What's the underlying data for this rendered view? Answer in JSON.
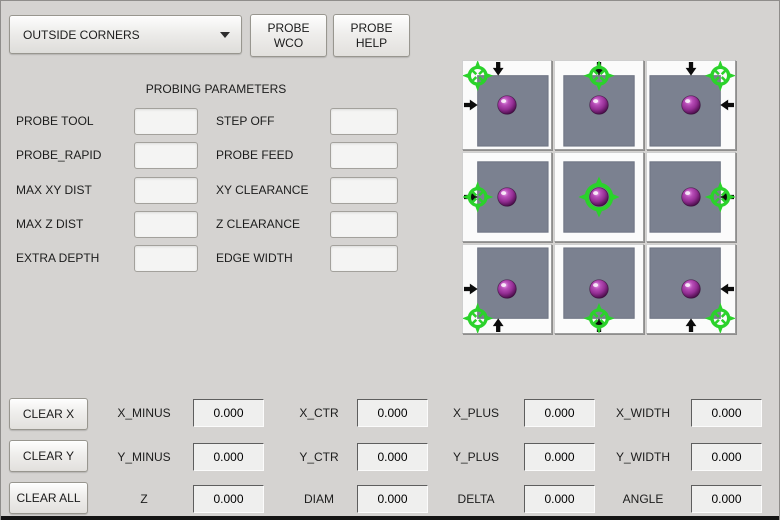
{
  "window": {
    "background": "#d5d3d1",
    "bottom_bar_color": "#141414"
  },
  "toolbar": {
    "mode_dropdown": {
      "value": "OUTSIDE CORNERS"
    },
    "probe_wco_button": {
      "lines": [
        "PROBE",
        "WCO"
      ]
    },
    "probe_help_button": {
      "lines": [
        "PROBE",
        "HELP"
      ]
    }
  },
  "parameters": {
    "title": "PROBING PARAMETERS",
    "rows": [
      {
        "left_label": "PROBE TOOL",
        "left_value": "",
        "right_label": "STEP OFF",
        "right_value": ""
      },
      {
        "left_label": "PROBE_RAPID",
        "left_value": "",
        "right_label": "PROBE FEED",
        "right_value": ""
      },
      {
        "left_label": "MAX XY DIST",
        "left_value": "",
        "right_label": "XY CLEARANCE",
        "right_value": ""
      },
      {
        "left_label": "MAX Z DIST",
        "left_value": "",
        "right_label": "Z CLEARANCE",
        "right_value": ""
      },
      {
        "left_label": "EXTRA DEPTH",
        "left_value": "",
        "right_label": "EDGE WIDTH",
        "right_value": ""
      }
    ]
  },
  "probe_grid": {
    "colors": {
      "square": "#7b8190",
      "square_edge": "#6d7382",
      "crosshair": "#2bd22b",
      "arrow": "#0c0c0c",
      "sphere_main": "#932e93",
      "tile_face": "#fbfbfb"
    },
    "tiles": [
      {
        "name": "top-left-corner",
        "target": "top-left",
        "arrows": [
          "down",
          "right"
        ]
      },
      {
        "name": "top-edge",
        "target": "top",
        "arrows": [
          "down"
        ]
      },
      {
        "name": "top-right-corner",
        "target": "top-right",
        "arrows": [
          "down",
          "left"
        ]
      },
      {
        "name": "left-edge",
        "target": "left",
        "arrows": [
          "right"
        ]
      },
      {
        "name": "center",
        "target": "center",
        "arrows": []
      },
      {
        "name": "right-edge",
        "target": "right",
        "arrows": [
          "left"
        ]
      },
      {
        "name": "bottom-left-corner",
        "target": "bottom-left",
        "arrows": [
          "up",
          "right"
        ]
      },
      {
        "name": "bottom-edge",
        "target": "bottom",
        "arrows": [
          "up"
        ]
      },
      {
        "name": "bottom-right-corner",
        "target": "bottom-right",
        "arrows": [
          "up",
          "left"
        ]
      }
    ]
  },
  "results": {
    "clear_buttons": [
      {
        "label": "CLEAR X"
      },
      {
        "label": "CLEAR Y"
      },
      {
        "label": "CLEAR ALL"
      }
    ],
    "rows": [
      {
        "cells": [
          {
            "label": "X_MINUS",
            "value": "0.000"
          },
          {
            "label": "X_CTR",
            "value": "0.000"
          },
          {
            "label": "X_PLUS",
            "value": "0.000"
          },
          {
            "label": "X_WIDTH",
            "value": "0.000"
          }
        ]
      },
      {
        "cells": [
          {
            "label": "Y_MINUS",
            "value": "0.000"
          },
          {
            "label": "Y_CTR",
            "value": "0.000"
          },
          {
            "label": "Y_PLUS",
            "value": "0.000"
          },
          {
            "label": "Y_WIDTH",
            "value": "0.000"
          }
        ]
      },
      {
        "cells": [
          {
            "label": "Z",
            "value": "0.000"
          },
          {
            "label": "DIAM",
            "value": "0.000"
          },
          {
            "label": "DELTA",
            "value": "0.000"
          },
          {
            "label": "ANGLE",
            "value": "0.000"
          }
        ]
      }
    ]
  }
}
